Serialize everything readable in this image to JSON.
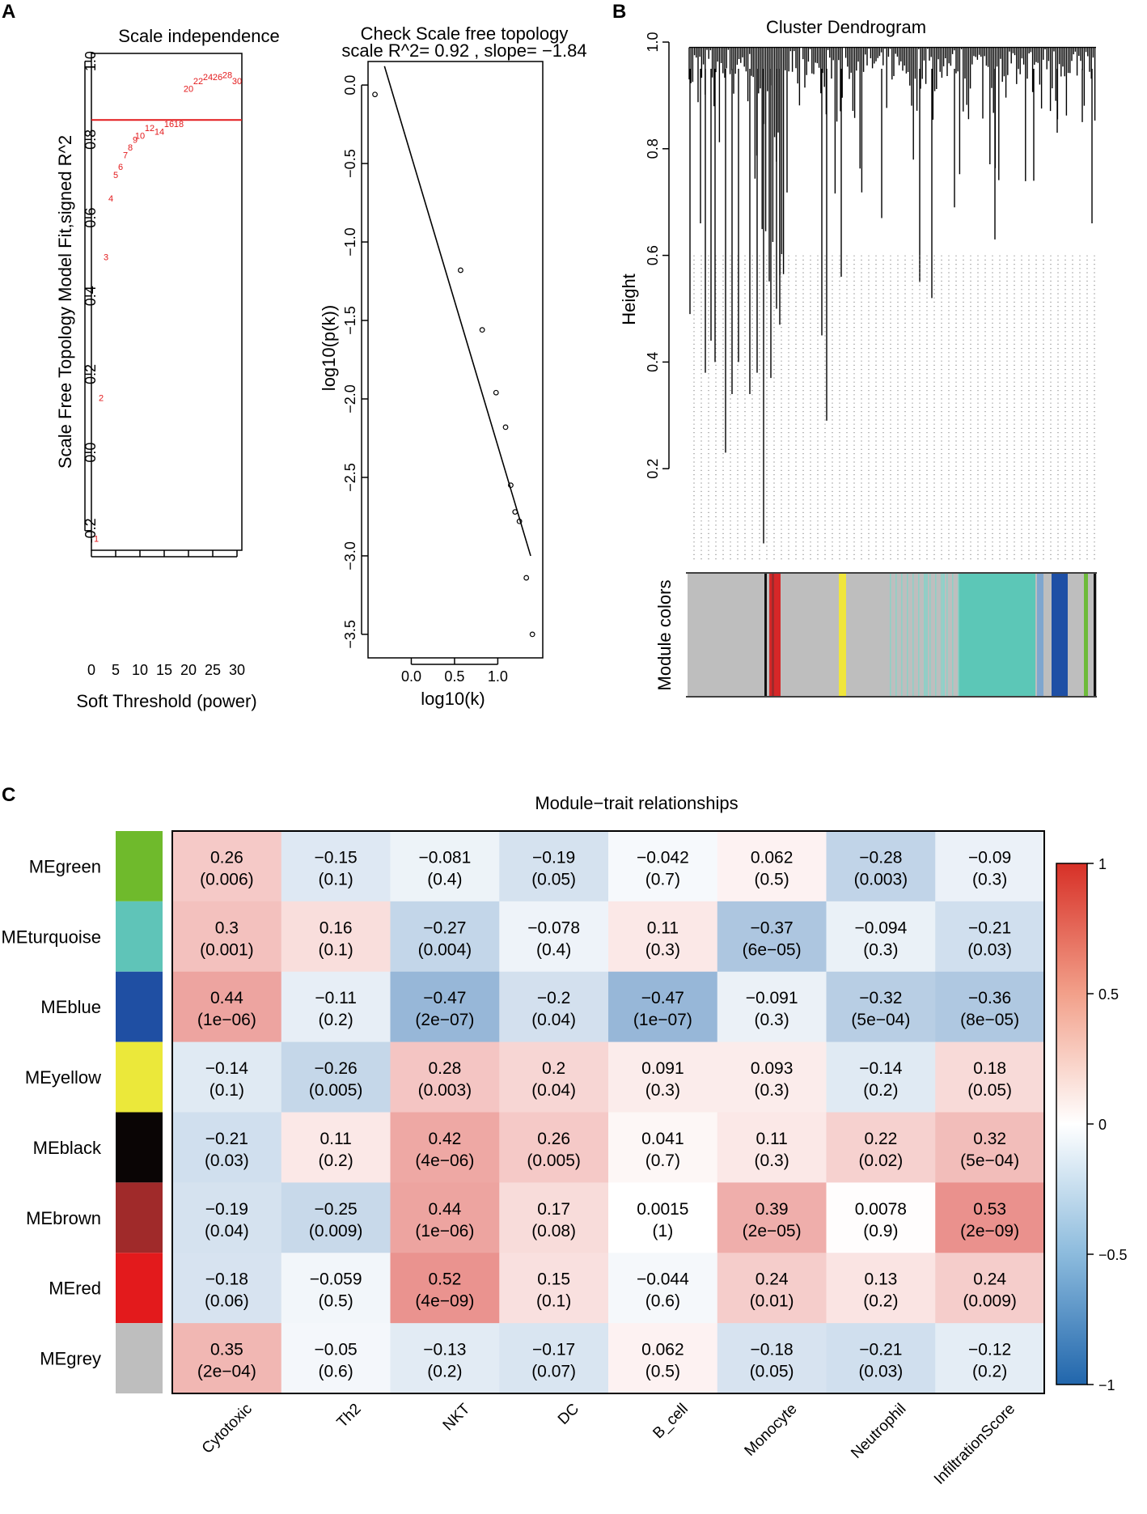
{
  "panel_letters": [
    "A",
    "B",
    "C"
  ],
  "colors": {
    "threshold_line": "#e31a1c",
    "point_labels": "#e31a1c",
    "heat_low": "#2166ac",
    "heat_mid": "#ffffff",
    "heat_high": "#d73027"
  },
  "chart_data": [
    {
      "id": "scale_independence",
      "type": "scatter",
      "title": "Scale independence",
      "xlabel": "Soft Threshold (power)",
      "ylabel": "Scale Free Topology Model Fit,signed R^2",
      "xlim": [
        0,
        31
      ],
      "ylim": [
        -0.25,
        1.02
      ],
      "xticks": [
        0,
        5,
        10,
        15,
        20,
        25,
        30
      ],
      "yticks": [
        -0.2,
        0.0,
        0.2,
        0.4,
        0.6,
        0.8,
        1.0
      ],
      "hline": 0.85,
      "x": [
        1,
        2,
        3,
        4,
        5,
        6,
        7,
        8,
        9,
        10,
        12,
        14,
        16,
        18,
        20,
        22,
        24,
        26,
        28,
        30
      ],
      "y": [
        -0.22,
        0.14,
        0.5,
        0.65,
        0.71,
        0.73,
        0.76,
        0.78,
        0.8,
        0.81,
        0.83,
        0.82,
        0.84,
        0.84,
        0.93,
        0.95,
        0.96,
        0.96,
        0.965,
        0.95
      ],
      "point_labels": [
        "1",
        "2",
        "3",
        "4",
        "5",
        "6",
        "7",
        "8",
        "9",
        "10",
        "12",
        "14",
        "16",
        "18",
        "20",
        "22",
        "24",
        "26",
        "28",
        "30"
      ]
    },
    {
      "id": "scale_free_topology",
      "type": "scatter",
      "title": "Check Scale free topology",
      "subtitle": "scale R^2= 0.92 , slope= −1.84",
      "xlabel": "log10(k)",
      "ylabel": "log10(p(k))",
      "xlim": [
        -0.5,
        1.52
      ],
      "ylim": [
        -3.65,
        0.15
      ],
      "xticks": [
        0.0,
        0.5,
        1.0
      ],
      "xtick_labels": [
        "0.0",
        "0.5",
        "1.0"
      ],
      "yticks": [
        0.0,
        -0.5,
        -1.0,
        -1.5,
        -2.0,
        -2.5,
        -3.0,
        -3.5
      ],
      "ytick_labels": [
        "0.0",
        "−0.5",
        "−1.0",
        "−1.5",
        "−2.0",
        "−2.5",
        "−3.0",
        "−3.5"
      ],
      "x": [
        -0.42,
        0.57,
        0.82,
        0.98,
        1.09,
        1.15,
        1.2,
        1.25,
        1.33,
        1.4
      ],
      "y": [
        -0.06,
        -1.18,
        -1.56,
        -1.96,
        -2.18,
        -2.55,
        -2.72,
        -2.78,
        -3.14,
        -3.5
      ],
      "fit_line": {
        "x": [
          -0.31,
          1.38
        ],
        "y": [
          0.12,
          -3.0
        ]
      }
    },
    {
      "id": "cluster_dendrogram",
      "type": "dendrogram",
      "title": "Cluster Dendrogram",
      "ylabel": "Height",
      "ylim": [
        0.0,
        1.0
      ],
      "yticks": [
        0.2,
        0.4,
        0.6,
        0.8,
        1.0
      ],
      "color_bar_label": "Module colors",
      "module_colors": [
        "grey",
        "black",
        "red",
        "brown",
        "yellow",
        "turquoise",
        "blue",
        "green"
      ]
    },
    {
      "id": "module_trait",
      "type": "heatmap",
      "title": "Module−trait relationships",
      "rows": [
        "MEgreen",
        "MEturquoise",
        "MEblue",
        "MEyellow",
        "MEblack",
        "MEbrown",
        "MEred",
        "MEgrey"
      ],
      "row_colors": [
        "#6fba2c",
        "#5fc4b8",
        "#1f4fa3",
        "#ebe83a",
        "#0a0505",
        "#a02a2a",
        "#e31a1c",
        "#bebebe"
      ],
      "columns": [
        "Cytotoxic",
        "Th2",
        "NKT",
        "DC",
        "B_cell",
        "Monocyte",
        "Neutrophil",
        "InfiltrationScore"
      ],
      "values": [
        [
          0.26,
          -0.15,
          -0.081,
          -0.19,
          -0.042,
          0.062,
          -0.28,
          -0.09
        ],
        [
          0.3,
          0.16,
          -0.27,
          -0.078,
          0.11,
          -0.37,
          -0.094,
          -0.21
        ],
        [
          0.44,
          -0.11,
          -0.47,
          -0.2,
          -0.47,
          -0.091,
          -0.32,
          -0.36
        ],
        [
          -0.14,
          -0.26,
          0.28,
          0.2,
          0.091,
          0.093,
          -0.14,
          0.18
        ],
        [
          -0.21,
          0.11,
          0.42,
          0.26,
          0.041,
          0.11,
          0.22,
          0.32
        ],
        [
          -0.19,
          -0.25,
          0.44,
          0.17,
          0.0015,
          0.39,
          0.0078,
          0.53
        ],
        [
          -0.18,
          -0.059,
          0.52,
          0.15,
          -0.044,
          0.24,
          0.13,
          0.24
        ],
        [
          0.35,
          -0.05,
          -0.13,
          -0.17,
          0.062,
          -0.18,
          -0.21,
          -0.12
        ]
      ],
      "value_labels": [
        [
          "0.26",
          "−0.15",
          "−0.081",
          "−0.19",
          "−0.042",
          "0.062",
          "−0.28",
          "−0.09"
        ],
        [
          "0.3",
          "0.16",
          "−0.27",
          "−0.078",
          "0.11",
          "−0.37",
          "−0.094",
          "−0.21"
        ],
        [
          "0.44",
          "−0.11",
          "−0.47",
          "−0.2",
          "−0.47",
          "−0.091",
          "−0.32",
          "−0.36"
        ],
        [
          "−0.14",
          "−0.26",
          "0.28",
          "0.2",
          "0.091",
          "0.093",
          "−0.14",
          "0.18"
        ],
        [
          "−0.21",
          "0.11",
          "0.42",
          "0.26",
          "0.041",
          "0.11",
          "0.22",
          "0.32"
        ],
        [
          "−0.19",
          "−0.25",
          "0.44",
          "0.17",
          "0.0015",
          "0.39",
          "0.0078",
          "0.53"
        ],
        [
          "−0.18",
          "−0.059",
          "0.52",
          "0.15",
          "−0.044",
          "0.24",
          "0.13",
          "0.24"
        ],
        [
          "0.35",
          "−0.05",
          "−0.13",
          "−0.17",
          "0.062",
          "−0.18",
          "−0.21",
          "−0.12"
        ]
      ],
      "pvalues": [
        [
          "(0.006)",
          "(0.1)",
          "(0.4)",
          "(0.05)",
          "(0.7)",
          "(0.5)",
          "(0.003)",
          "(0.3)"
        ],
        [
          "(0.001)",
          "(0.1)",
          "(0.004)",
          "(0.4)",
          "(0.3)",
          "(6e−05)",
          "(0.3)",
          "(0.03)"
        ],
        [
          "(1e−06)",
          "(0.2)",
          "(2e−07)",
          "(0.04)",
          "(1e−07)",
          "(0.3)",
          "(5e−04)",
          "(8e−05)"
        ],
        [
          "(0.1)",
          "(0.005)",
          "(0.003)",
          "(0.04)",
          "(0.3)",
          "(0.3)",
          "(0.2)",
          "(0.05)"
        ],
        [
          "(0.03)",
          "(0.2)",
          "(4e−06)",
          "(0.005)",
          "(0.7)",
          "(0.3)",
          "(0.02)",
          "(5e−04)"
        ],
        [
          "(0.04)",
          "(0.009)",
          "(1e−06)",
          "(0.08)",
          "(1)",
          "(2e−05)",
          "(0.9)",
          "(2e−09)"
        ],
        [
          "(0.06)",
          "(0.5)",
          "(4e−09)",
          "(0.1)",
          "(0.6)",
          "(0.01)",
          "(0.2)",
          "(0.009)"
        ],
        [
          "(2e−04)",
          "(0.6)",
          "(0.2)",
          "(0.07)",
          "(0.5)",
          "(0.05)",
          "(0.03)",
          "(0.2)"
        ]
      ],
      "legend": {
        "range": [
          -1,
          1
        ],
        "ticks": [
          1,
          0.5,
          0,
          -0.5,
          -1
        ],
        "tick_labels": [
          "1",
          "0.5",
          "0",
          "−0.5",
          "−1"
        ]
      }
    }
  ]
}
